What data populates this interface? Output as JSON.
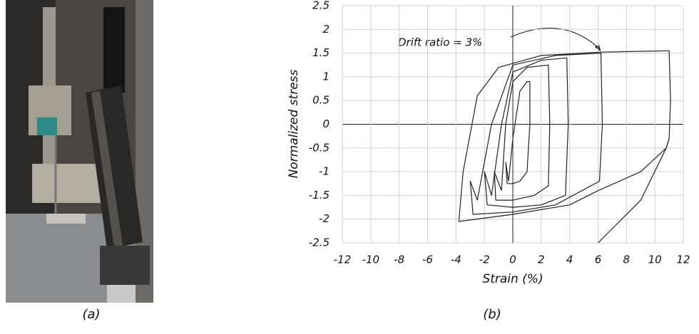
{
  "chart_data": {
    "type": "line",
    "annotation": "Drift ratio = 3%",
    "xlabel": "Strain (%)",
    "ylabel": "Normalized stress",
    "xlim": [
      -12,
      12
    ],
    "xticks": [
      -12,
      -10,
      -8,
      -6,
      -4,
      -2,
      0,
      2,
      4,
      6,
      8,
      10,
      12
    ],
    "ylim": [
      -2.5,
      2.5
    ],
    "yticks": [
      -2.5,
      -2,
      -1.5,
      -1,
      -0.5,
      0,
      0.5,
      1,
      1.5,
      2,
      2.5
    ],
    "grid": true,
    "series": [
      {
        "color": "#222222",
        "x": [
          -0.3,
          0,
          0.5,
          1,
          1.2,
          1.2,
          1.0,
          0.5,
          0,
          -0.4,
          -0.5,
          -0.3
        ],
        "values": [
          -1.2,
          -0.3,
          0.7,
          0.9,
          0.9,
          0,
          -1.0,
          -1.2,
          -1.25,
          -1.25,
          -0.8,
          -1.2
        ]
      },
      {
        "color": "#222222",
        "x": [
          -0.8,
          -0.5,
          0,
          1,
          2.5,
          2.6,
          2.5,
          1.5,
          0,
          -1.2,
          -1.3,
          -0.8
        ],
        "values": [
          -1.4,
          0,
          0.9,
          1.2,
          1.25,
          0,
          -1.3,
          -1.5,
          -1.6,
          -1.6,
          -1.0,
          -1.4
        ]
      },
      {
        "color": "#222222",
        "x": [
          -1.5,
          -0.8,
          0,
          2,
          3.8,
          3.9,
          3.7,
          2,
          0,
          -1.8,
          -2,
          -1.5
        ],
        "values": [
          -1.5,
          0,
          1.1,
          1.35,
          1.4,
          0,
          -1.5,
          -1.7,
          -1.75,
          -1.7,
          -1,
          -1.5
        ]
      },
      {
        "color": "#222222",
        "x": [
          -2.5,
          -1.5,
          0,
          3,
          6.2,
          6.3,
          6.1,
          3,
          0,
          -2.8,
          -3,
          -2.5
        ],
        "values": [
          -1.6,
          0,
          1.25,
          1.45,
          1.5,
          0,
          -1.2,
          -1.7,
          -1.85,
          -1.9,
          -1.2,
          -1.6
        ]
      },
      {
        "color": "#222222",
        "x": [
          -3.8,
          -3.5,
          -2.5,
          -1,
          2,
          6,
          11,
          11.1,
          11,
          10.8,
          9,
          6,
          4,
          0,
          -3.8
        ],
        "values": [
          -2.05,
          -1,
          0.6,
          1.2,
          1.45,
          1.52,
          1.55,
          0.5,
          -0.3,
          -0.5,
          -1.0,
          -1.4,
          -1.7,
          -1.9,
          -2.05
        ]
      },
      {
        "color": "#222222",
        "x": [
          11,
          10.8,
          9,
          7,
          6
        ],
        "values": [
          -0.3,
          -0.5,
          -1.6,
          -2.2,
          -2.5
        ]
      }
    ]
  },
  "captions": [
    "(a)",
    "(b)"
  ]
}
